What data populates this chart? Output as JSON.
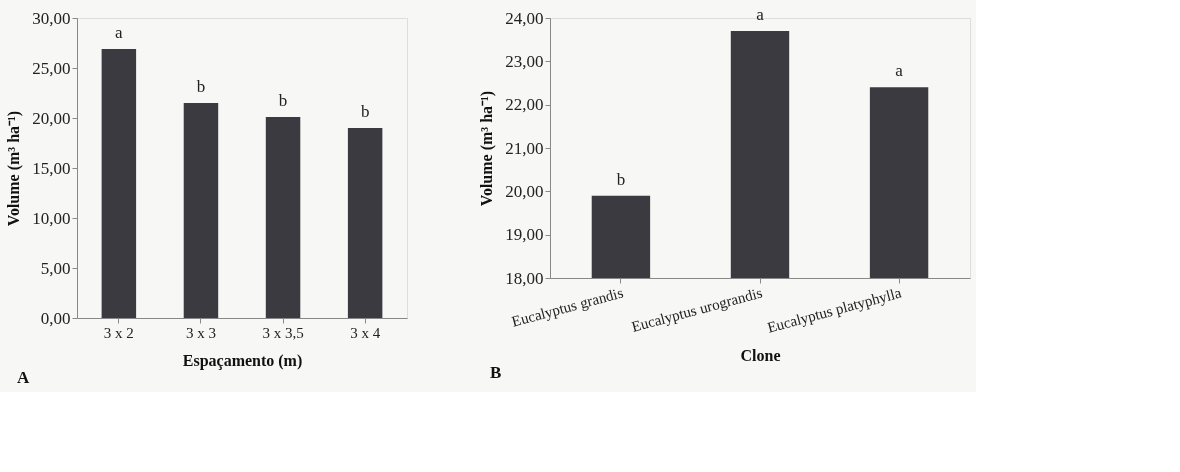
{
  "chart_data": [
    {
      "type": "bar",
      "xlabel": "Espaçamento (m)",
      "ylabel": "Volume  (m³ ha⁻¹)",
      "categories": [
        "3 x 2",
        "3 x 3",
        "3 x 3,5",
        "3 x 4"
      ],
      "values": [
        26.9,
        21.5,
        20.1,
        19.0
      ],
      "color": "#3a3a40",
      "ylim": [
        0,
        30
      ],
      "yticks": [
        {
          "value": 0,
          "label": "0,00"
        },
        {
          "value": 5,
          "label": "5,00"
        },
        {
          "value": 10,
          "label": "10,00"
        },
        {
          "value": 15,
          "label": "15,00"
        },
        {
          "value": 20,
          "label": "20,00"
        },
        {
          "value": 25,
          "label": "25,00"
        },
        {
          "value": 30,
          "label": "30,00"
        }
      ],
      "grid": false,
      "annotations": [
        {
          "text": "a",
          "x": "3 x 2",
          "y": 26.9
        },
        {
          "text": "b",
          "x": "3 x 3",
          "y": 21.5
        },
        {
          "text": "b",
          "x": "3 x 3,5",
          "y": 20.1
        },
        {
          "text": "b",
          "x": "3 x 4",
          "y": 19.0
        },
        "A"
      ]
    },
    {
      "type": "bar",
      "xlabel": "Clone",
      "ylabel": "Volume (m³ ha⁻¹)",
      "categories": [
        "Eucalyptus grandis",
        "Eucalyptus urograndis",
        "Eucalyptus platyphylla"
      ],
      "values": [
        19.9,
        23.7,
        22.4
      ],
      "color": "#3a3a40",
      "ylim": [
        18,
        24
      ],
      "yticks": [
        {
          "value": 18,
          "label": "18,00"
        },
        {
          "value": 19,
          "label": "19,00"
        },
        {
          "value": 20,
          "label": "20,00"
        },
        {
          "value": 21,
          "label": "21,00"
        },
        {
          "value": 22,
          "label": "22,00"
        },
        {
          "value": 23,
          "label": "23,00"
        },
        {
          "value": 24,
          "label": "24,00"
        }
      ],
      "grid": false,
      "annotations": [
        {
          "text": "b",
          "x": "Eucalyptus grandis",
          "y": 19.9
        },
        {
          "text": "a",
          "x": "Eucalyptus urograndis",
          "y": 23.7
        },
        {
          "text": "a",
          "x": "Eucalyptus platyphylla",
          "y": 22.4
        },
        "B"
      ]
    }
  ]
}
